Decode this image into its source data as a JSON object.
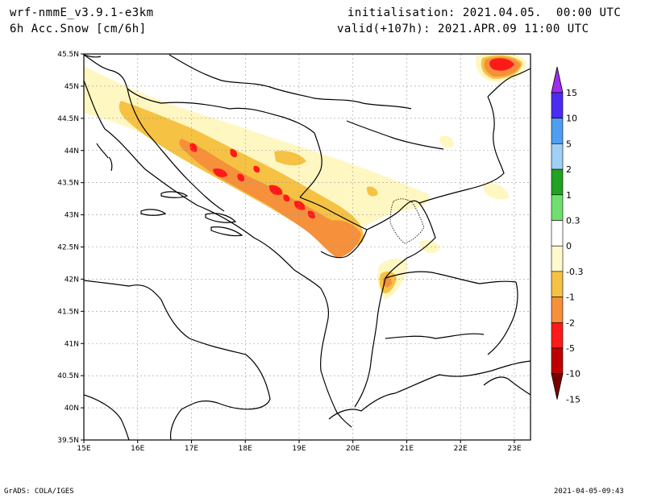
{
  "header": {
    "model": "wrf-nmmE_v3.9.1-e3km",
    "field": "6h Acc.Snow [cm/6h]",
    "initialisation": "initialisation: 2021.04.05.  00:00 UTC",
    "valid": "valid(+107h): 2021.APR.09 11:00 UTC"
  },
  "footer": {
    "left": "GrADS: COLA/IGES",
    "right": "2021-04-05-09:43"
  },
  "axes": {
    "lon_labels": [
      "15E",
      "16E",
      "17E",
      "18E",
      "19E",
      "20E",
      "21E",
      "22E",
      "23E"
    ],
    "lat_labels": [
      "45.5N",
      "45N",
      "44.5N",
      "44N",
      "43.5N",
      "43N",
      "42.5N",
      "42N",
      "41.5N",
      "41N",
      "40.5N",
      "40N",
      "39.5N"
    ],
    "lon_range": [
      15,
      23.3
    ],
    "lat_range": [
      39.5,
      45.5
    ],
    "grid": true
  },
  "colorbar": {
    "labels": [
      "15",
      "10",
      "5",
      "2",
      "1",
      "0.3",
      "0",
      "-0.3",
      "-1",
      "-2",
      "-5",
      "-10",
      "-15"
    ],
    "colors": {
      "top_arrow": "#a02cf0",
      "c15": "#4c2cf0",
      "c10": "#4f9ef2",
      "c5": "#9fd0f6",
      "c2": "#21a321",
      "c1": "#6fe06f",
      "c03": "#ffffff",
      "cm03": "#fffacc",
      "cm1": "#f6c244",
      "cm2": "#f6903a",
      "cm5": "#ff1a1a",
      "cm10": "#c00000",
      "bottom_arrow": "#7a0000"
    }
  },
  "snow_colors": {
    "light": "#fff7c2",
    "yellow": "#f6c244",
    "orange": "#f6903a",
    "red": "#ff1a1a"
  }
}
